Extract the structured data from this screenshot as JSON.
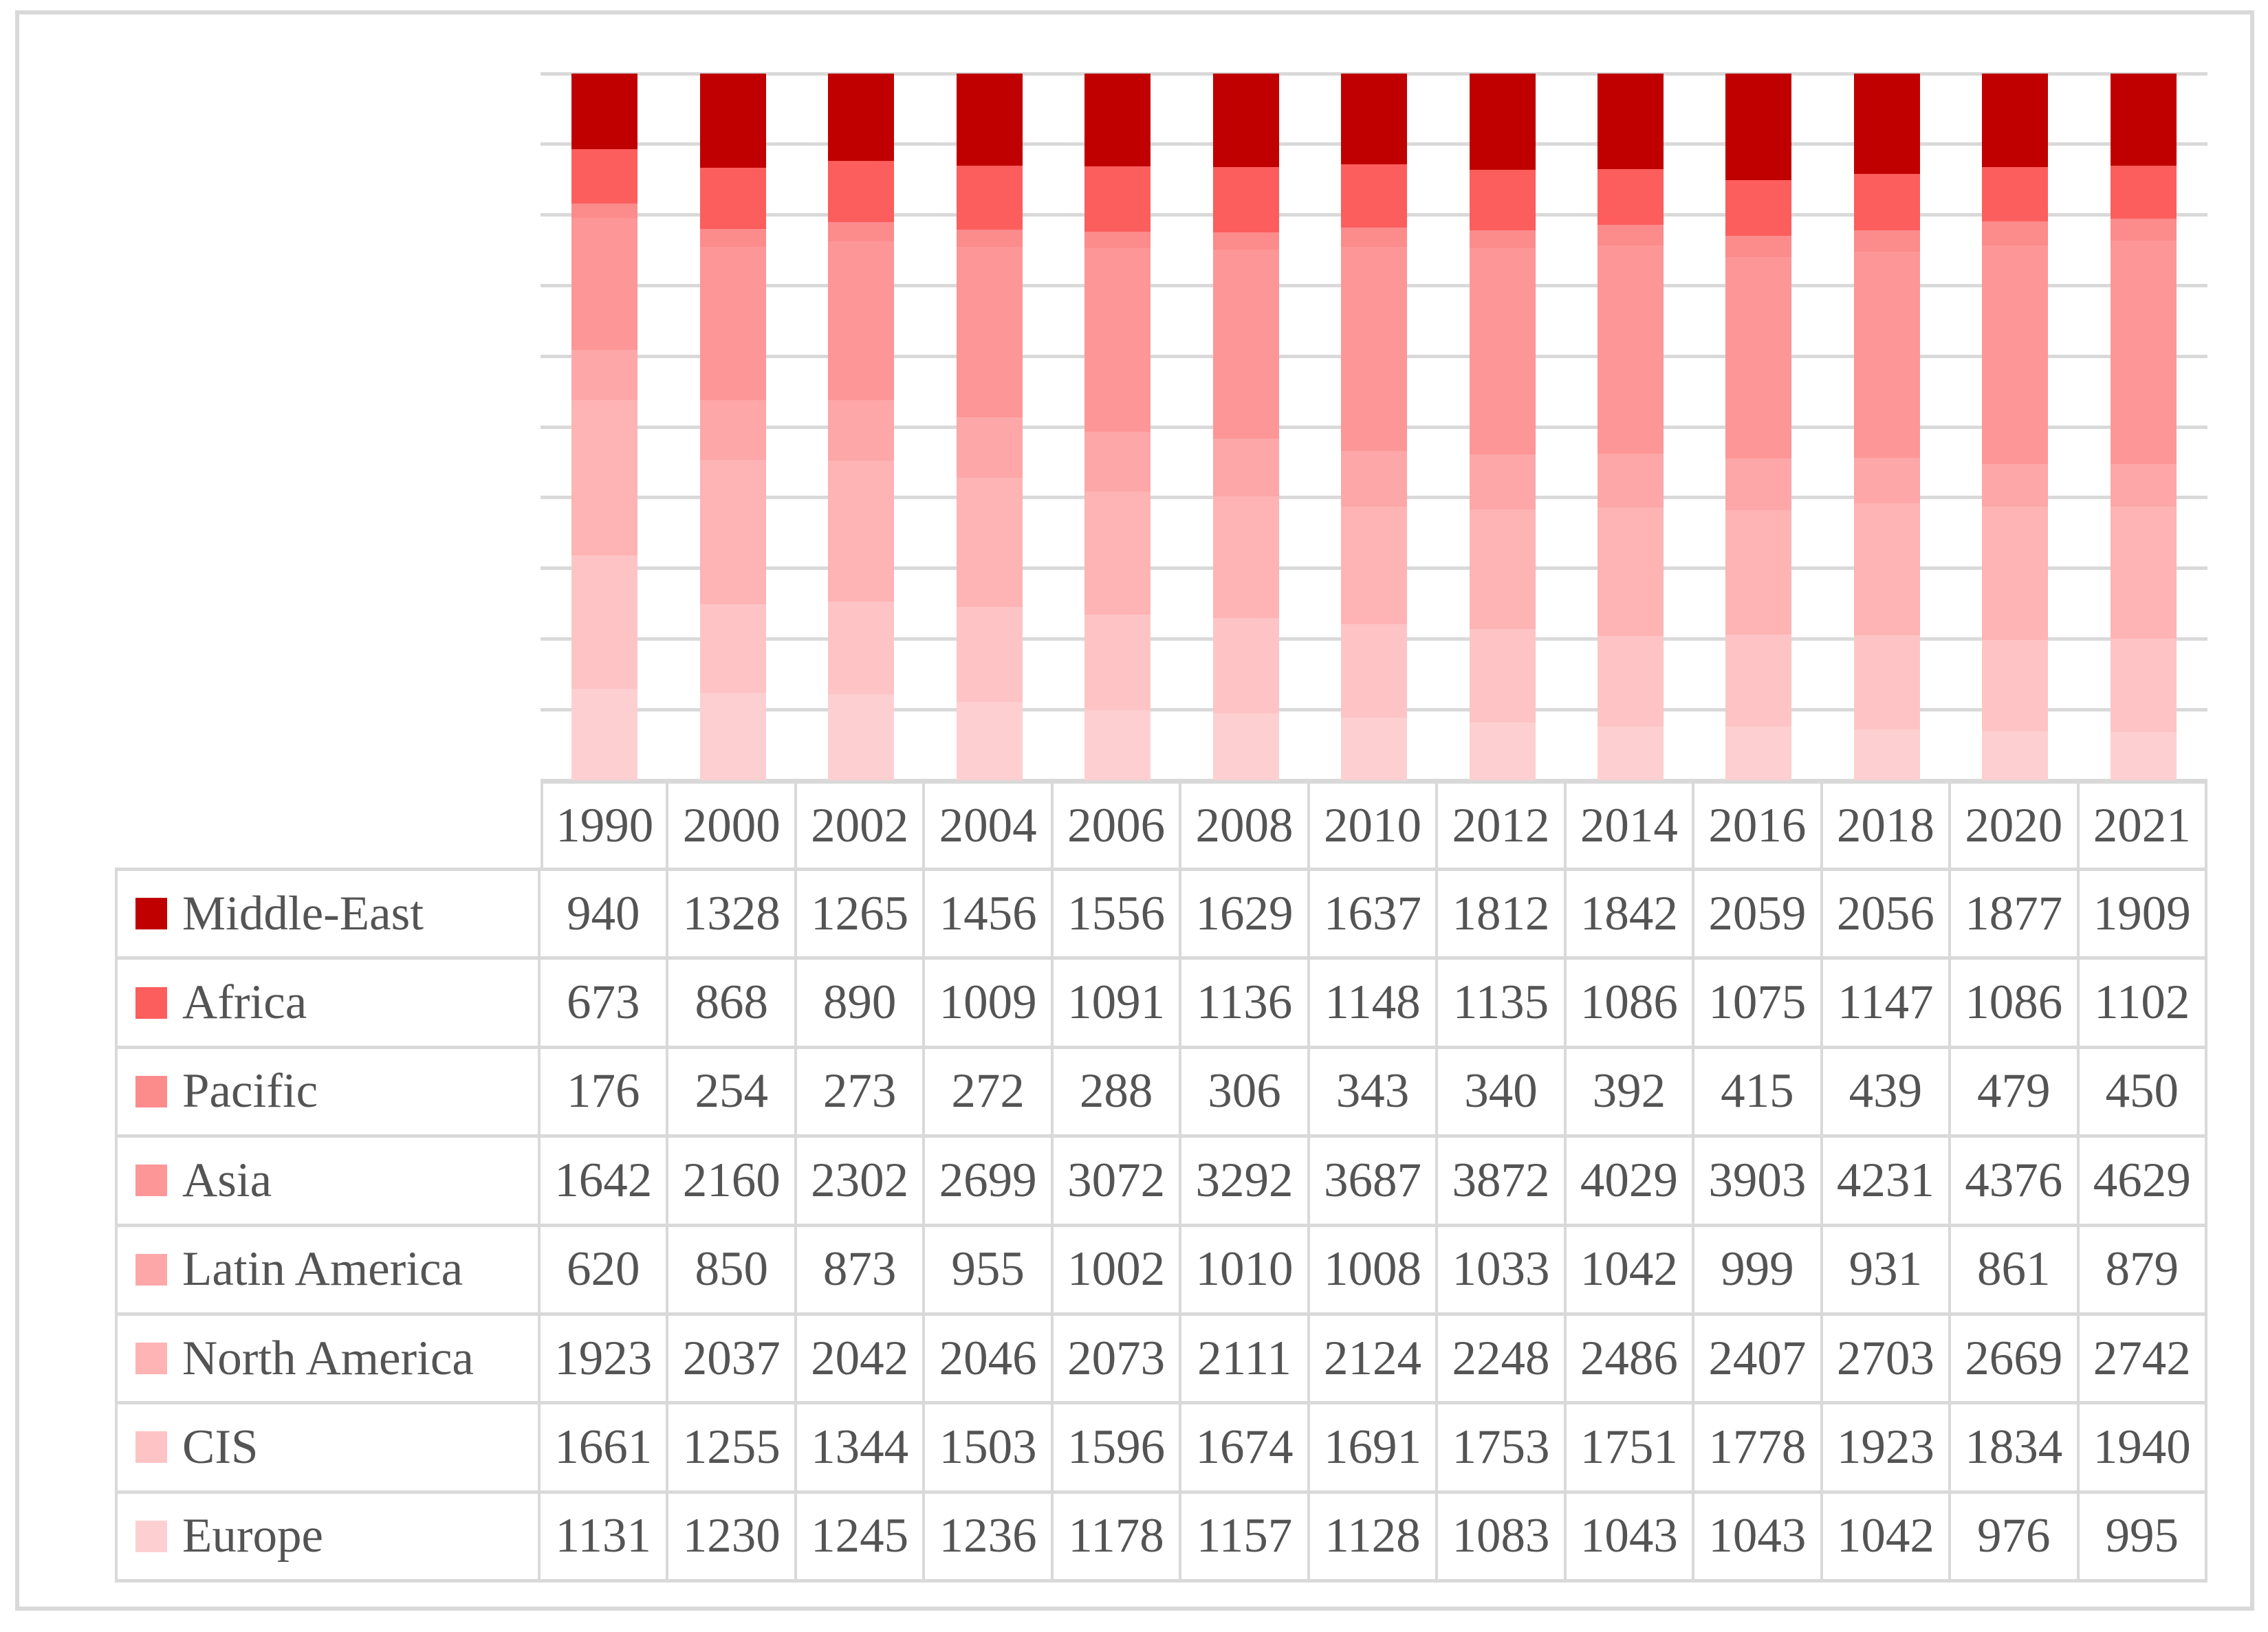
{
  "figure": {
    "background": "#FFFFFF",
    "border_color": "#D9D9D9",
    "text_color": "#545454",
    "grid_color": "#D9D9D9"
  },
  "chart_data": {
    "type": "bar",
    "variant": "100-percent-stacked-column-with-data-table",
    "title": "",
    "xlabel": "",
    "ylabel": "",
    "x_categories": [
      "1990",
      "2000",
      "2002",
      "2004",
      "2006",
      "2008",
      "2010",
      "2012",
      "2014",
      "2016",
      "2018",
      "2020",
      "2021"
    ],
    "stacking_note": "each column normalized to 100% of yearly total; first series drawn at top of bar, last at bottom",
    "gridlines": {
      "horizontal_intervals": 10,
      "color": "#D9D9D9",
      "visible": true
    },
    "legend_position": "table-left-column",
    "series": [
      {
        "name": "Middle-East",
        "color": "#C00000",
        "values": [
          940,
          1328,
          1265,
          1456,
          1556,
          1629,
          1637,
          1812,
          1842,
          2059,
          2056,
          1877,
          1909
        ]
      },
      {
        "name": "Africa",
        "color": "#FC5D5D",
        "values": [
          673,
          868,
          890,
          1009,
          1091,
          1136,
          1148,
          1135,
          1086,
          1075,
          1147,
          1086,
          1102
        ]
      },
      {
        "name": "Pacific",
        "color": "#FC8B8C",
        "values": [
          176,
          254,
          273,
          272,
          288,
          306,
          343,
          340,
          392,
          415,
          439,
          479,
          450
        ]
      },
      {
        "name": "Asia",
        "color": "#FD9697",
        "values": [
          1642,
          2160,
          2302,
          2699,
          3072,
          3292,
          3687,
          3872,
          4029,
          3903,
          4231,
          4376,
          4629
        ]
      },
      {
        "name": "Latin America",
        "color": "#FDA7A8",
        "values": [
          620,
          850,
          873,
          955,
          1002,
          1010,
          1008,
          1033,
          1042,
          999,
          931,
          861,
          879
        ]
      },
      {
        "name": "North America",
        "color": "#FEB3B4",
        "values": [
          1923,
          2037,
          2042,
          2046,
          2073,
          2111,
          2124,
          2248,
          2486,
          2407,
          2703,
          2669,
          2742
        ]
      },
      {
        "name": "CIS",
        "color": "#FEC4C5",
        "values": [
          1661,
          1255,
          1344,
          1503,
          1596,
          1674,
          1691,
          1753,
          1751,
          1778,
          1923,
          1834,
          1940
        ]
      },
      {
        "name": "Europe",
        "color": "#FECFD0",
        "values": [
          1131,
          1230,
          1245,
          1236,
          1178,
          1157,
          1128,
          1083,
          1043,
          1043,
          1042,
          976,
          995
        ]
      }
    ]
  }
}
